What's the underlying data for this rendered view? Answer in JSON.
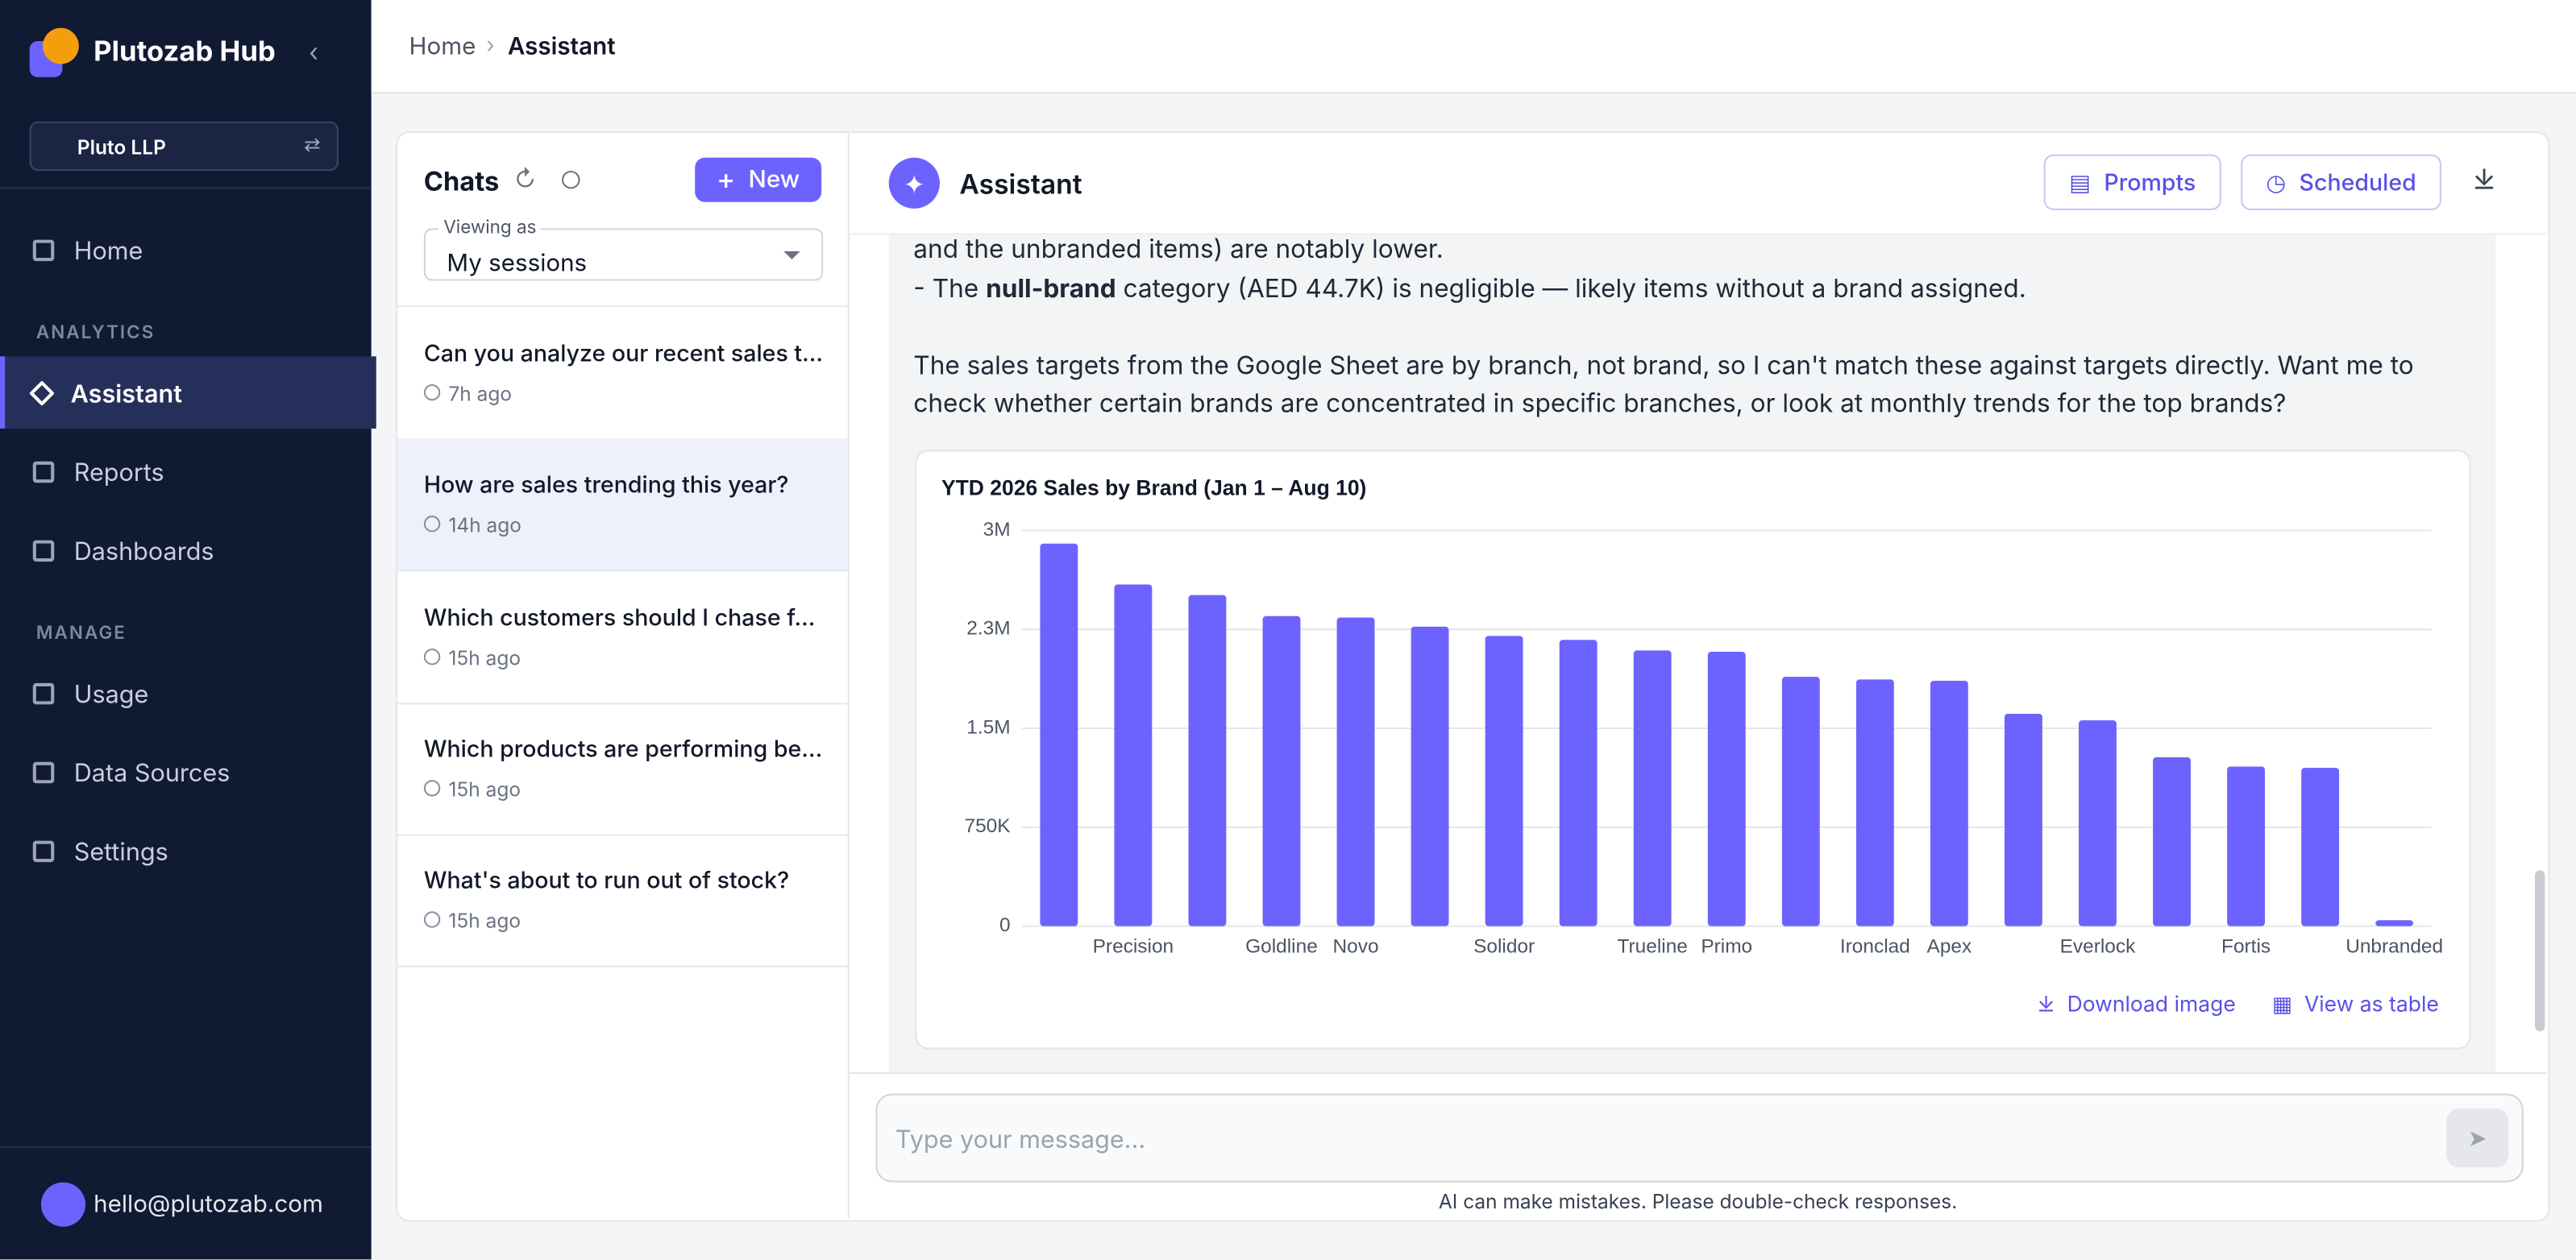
{
  "sidebar": {
    "brand": "Plutozab Hub",
    "org": "Pluto LLP",
    "nav_top": [
      "Home"
    ],
    "section_1": "ANALYTICS",
    "nav_analytics": [
      "Assistant",
      "Reports",
      "Dashboards"
    ],
    "section_2": "MANAGE",
    "nav_manage": [
      "Usage",
      "Data Sources",
      "Settings"
    ],
    "user": "hello@plutozab.com"
  },
  "breadcrumb": [
    "Home",
    "Assistant"
  ],
  "chats": {
    "title": "Chats",
    "new": "New",
    "viewing_label": "Viewing as",
    "viewing_value": "My sessions",
    "items": [
      {
        "title": "Can you analyze our recent sales t...",
        "time": "7h ago"
      },
      {
        "title": "How are sales trending this year?",
        "time": "14h ago"
      },
      {
        "title": "Which customers should I chase f...",
        "time": "15h ago"
      },
      {
        "title": "Which products are performing be...",
        "time": "15h ago"
      },
      {
        "title": "What's about to run out of stock?",
        "time": "15h ago"
      }
    ]
  },
  "assistant": {
    "title": "Assistant",
    "prompts": "Prompts",
    "scheduled": "Scheduled",
    "line_1": "and the unbranded items) are notably lower.",
    "line_2": [
      "- The ",
      "null-brand",
      " category (AED 44.7K) is negligible — likely items without a brand assigned."
    ],
    "paragraph": "The sales targets from the Google Sheet are by branch, not brand, so I can't match these against targets directly. Want me to check whether certain brands are concentrated in specific branches, or look at monthly trends for the top brands?"
  },
  "chart_data": {
    "type": "bar",
    "title": "YTD 2026 Sales by Brand (Jan 1 – Aug 10)",
    "categories": [
      null,
      "Precision",
      null,
      "Goldline",
      "Novo",
      null,
      "Solidor",
      null,
      "Trueline",
      "Primo",
      null,
      "Ironclad",
      "Apex",
      null,
      "Everlock",
      null,
      "Fortis",
      null,
      "Unbranded"
    ],
    "values": [
      2900000,
      2590000,
      2510000,
      2350000,
      2340000,
      2270000,
      2200000,
      2170000,
      2090000,
      2080000,
      1890000,
      1870000,
      1860000,
      1610000,
      1560000,
      1280000,
      1210000,
      1200000,
      44700
    ],
    "color": "#6c63ff",
    "ylim": [
      0,
      3000000
    ],
    "yticks": [
      0,
      {
        "value": 750000,
        "label": "750K"
      },
      {
        "value": 1500000,
        "label": "1.5M"
      },
      {
        "value": 2250000,
        "label": "2.3M"
      },
      {
        "value": 3000000,
        "label": "3M"
      }
    ],
    "grid": true
  },
  "chart_actions": [
    "Download image",
    "View as table"
  ],
  "input": {
    "placeholder": "Type your message...",
    "disclaimer": "AI can make mistakes. Please double-check responses."
  }
}
